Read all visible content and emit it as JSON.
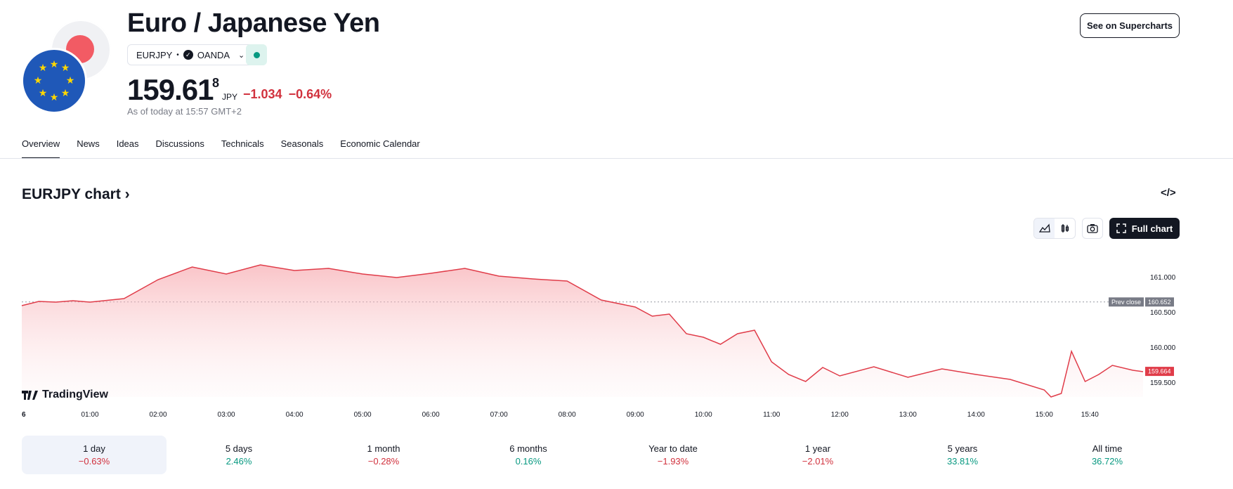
{
  "header": {
    "title": "Euro / Japanese Yen",
    "symbol": "EURJPY",
    "broker": "OANDA",
    "price_main": "159.61",
    "price_sup": "8",
    "currency": "JPY",
    "change_abs": "−1.034",
    "change_pct": "−0.64%",
    "as_of": "As of today at 15:57 GMT+2",
    "super_label": "See on Supercharts"
  },
  "tabs": [
    {
      "label": "Overview"
    },
    {
      "label": "News"
    },
    {
      "label": "Ideas"
    },
    {
      "label": "Discussions"
    },
    {
      "label": "Technicals"
    },
    {
      "label": "Seasonals"
    },
    {
      "label": "Economic Calendar"
    }
  ],
  "chart_header": {
    "title": "EURJPY chart",
    "full_chart_label": "Full chart",
    "logo_text": "TradingView"
  },
  "colors": {
    "negative": "#d1313d",
    "positive": "#089981",
    "line": "#e03c49"
  },
  "chart_data": {
    "type": "area",
    "x_ticks": [
      "6",
      "01:00",
      "02:00",
      "03:00",
      "04:00",
      "05:00",
      "06:00",
      "07:00",
      "08:00",
      "09:00",
      "10:00",
      "11:00",
      "12:00",
      "13:00",
      "14:00",
      "15:00",
      "15:40"
    ],
    "y_ticks": [
      "161.000",
      "160.500",
      "160.000",
      "159.500"
    ],
    "ylim": [
      159.3,
      161.55
    ],
    "prev_close_label": "Prev close",
    "prev_close": "160.652",
    "last_label": "159.664",
    "x": [
      0,
      0.25,
      0.5,
      0.75,
      1,
      1.5,
      2,
      2.5,
      3,
      3.5,
      4,
      4.5,
      5,
      5.5,
      6,
      6.5,
      7,
      7.5,
      8,
      8.5,
      9,
      9.25,
      9.5,
      9.75,
      10,
      10.25,
      10.5,
      10.75,
      11,
      11.25,
      11.5,
      11.75,
      12,
      12.5,
      13,
      13.5,
      14,
      14.5,
      15,
      15.1,
      15.25,
      15.4,
      15.6,
      15.8,
      16,
      16.3,
      16.45
    ],
    "values": [
      160.6,
      160.66,
      160.65,
      160.67,
      160.65,
      160.7,
      160.97,
      161.15,
      161.05,
      161.18,
      161.1,
      161.13,
      161.05,
      161.0,
      161.06,
      161.13,
      161.02,
      160.98,
      160.95,
      160.68,
      160.58,
      160.45,
      160.48,
      160.2,
      160.15,
      160.05,
      160.2,
      160.25,
      159.8,
      159.62,
      159.52,
      159.72,
      159.6,
      159.73,
      159.58,
      159.7,
      159.62,
      159.55,
      159.4,
      159.3,
      159.35,
      159.95,
      159.52,
      159.62,
      159.75,
      159.68,
      159.66
    ]
  },
  "periods": [
    {
      "label": "1 day",
      "value": "−0.63%",
      "sign": "neg"
    },
    {
      "label": "5 days",
      "value": "2.46%",
      "sign": "pos"
    },
    {
      "label": "1 month",
      "value": "−0.28%",
      "sign": "neg"
    },
    {
      "label": "6 months",
      "value": "0.16%",
      "sign": "pos"
    },
    {
      "label": "Year to date",
      "value": "−1.93%",
      "sign": "neg"
    },
    {
      "label": "1 year",
      "value": "−2.01%",
      "sign": "neg"
    },
    {
      "label": "5 years",
      "value": "33.81%",
      "sign": "pos"
    },
    {
      "label": "All time",
      "value": "36.72%",
      "sign": "pos"
    }
  ]
}
